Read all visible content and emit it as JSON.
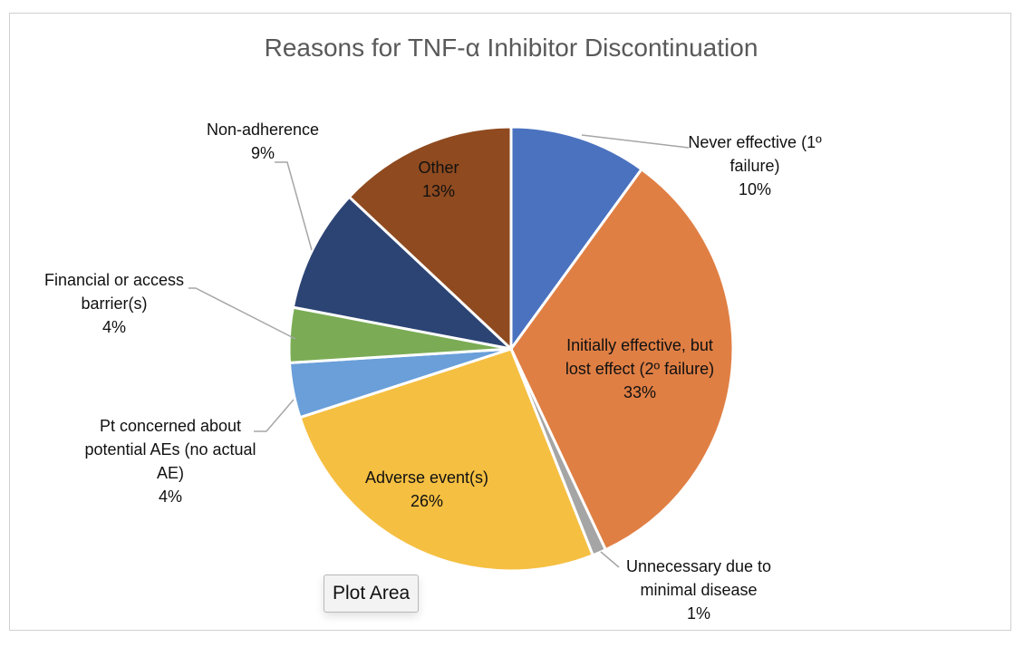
{
  "chart_data": {
    "type": "pie",
    "title": "Reasons for TNF-α Inhibitor Discontinuation",
    "slices": [
      {
        "label_lines": [
          "Never effective (1º",
          "failure)"
        ],
        "value": 10,
        "value_label": "10%",
        "color": "#4a72bf"
      },
      {
        "label_lines": [
          "Initially effective, but",
          "lost effect (2º failure)"
        ],
        "value": 33,
        "value_label": "33%",
        "color": "#e07f44"
      },
      {
        "label_lines": [
          "Unnecessary due to",
          "minimal disease"
        ],
        "value": 1,
        "value_label": "1%",
        "color": "#a5a5a5"
      },
      {
        "label_lines": [
          "Adverse event(s)"
        ],
        "value": 26,
        "value_label": "26%",
        "color": "#f5bf42"
      },
      {
        "label_lines": [
          "Pt concerned about",
          "potential AEs (no actual",
          "AE)"
        ],
        "value": 4,
        "value_label": "4%",
        "color": "#6a9fd9"
      },
      {
        "label_lines": [
          "Financial or access",
          "barrier(s)"
        ],
        "value": 4,
        "value_label": "4%",
        "color": "#7bac55"
      },
      {
        "label_lines": [
          "Non-adherence"
        ],
        "value": 9,
        "value_label": "9%",
        "color": "#2c4474"
      },
      {
        "label_lines": [
          "Other"
        ],
        "value": 13,
        "value_label": "13%",
        "color": "#8f4a1f"
      }
    ],
    "start_angle_deg": 0,
    "direction": "clockwise",
    "legend": "none"
  },
  "tooltip": {
    "text": "Plot Area"
  }
}
